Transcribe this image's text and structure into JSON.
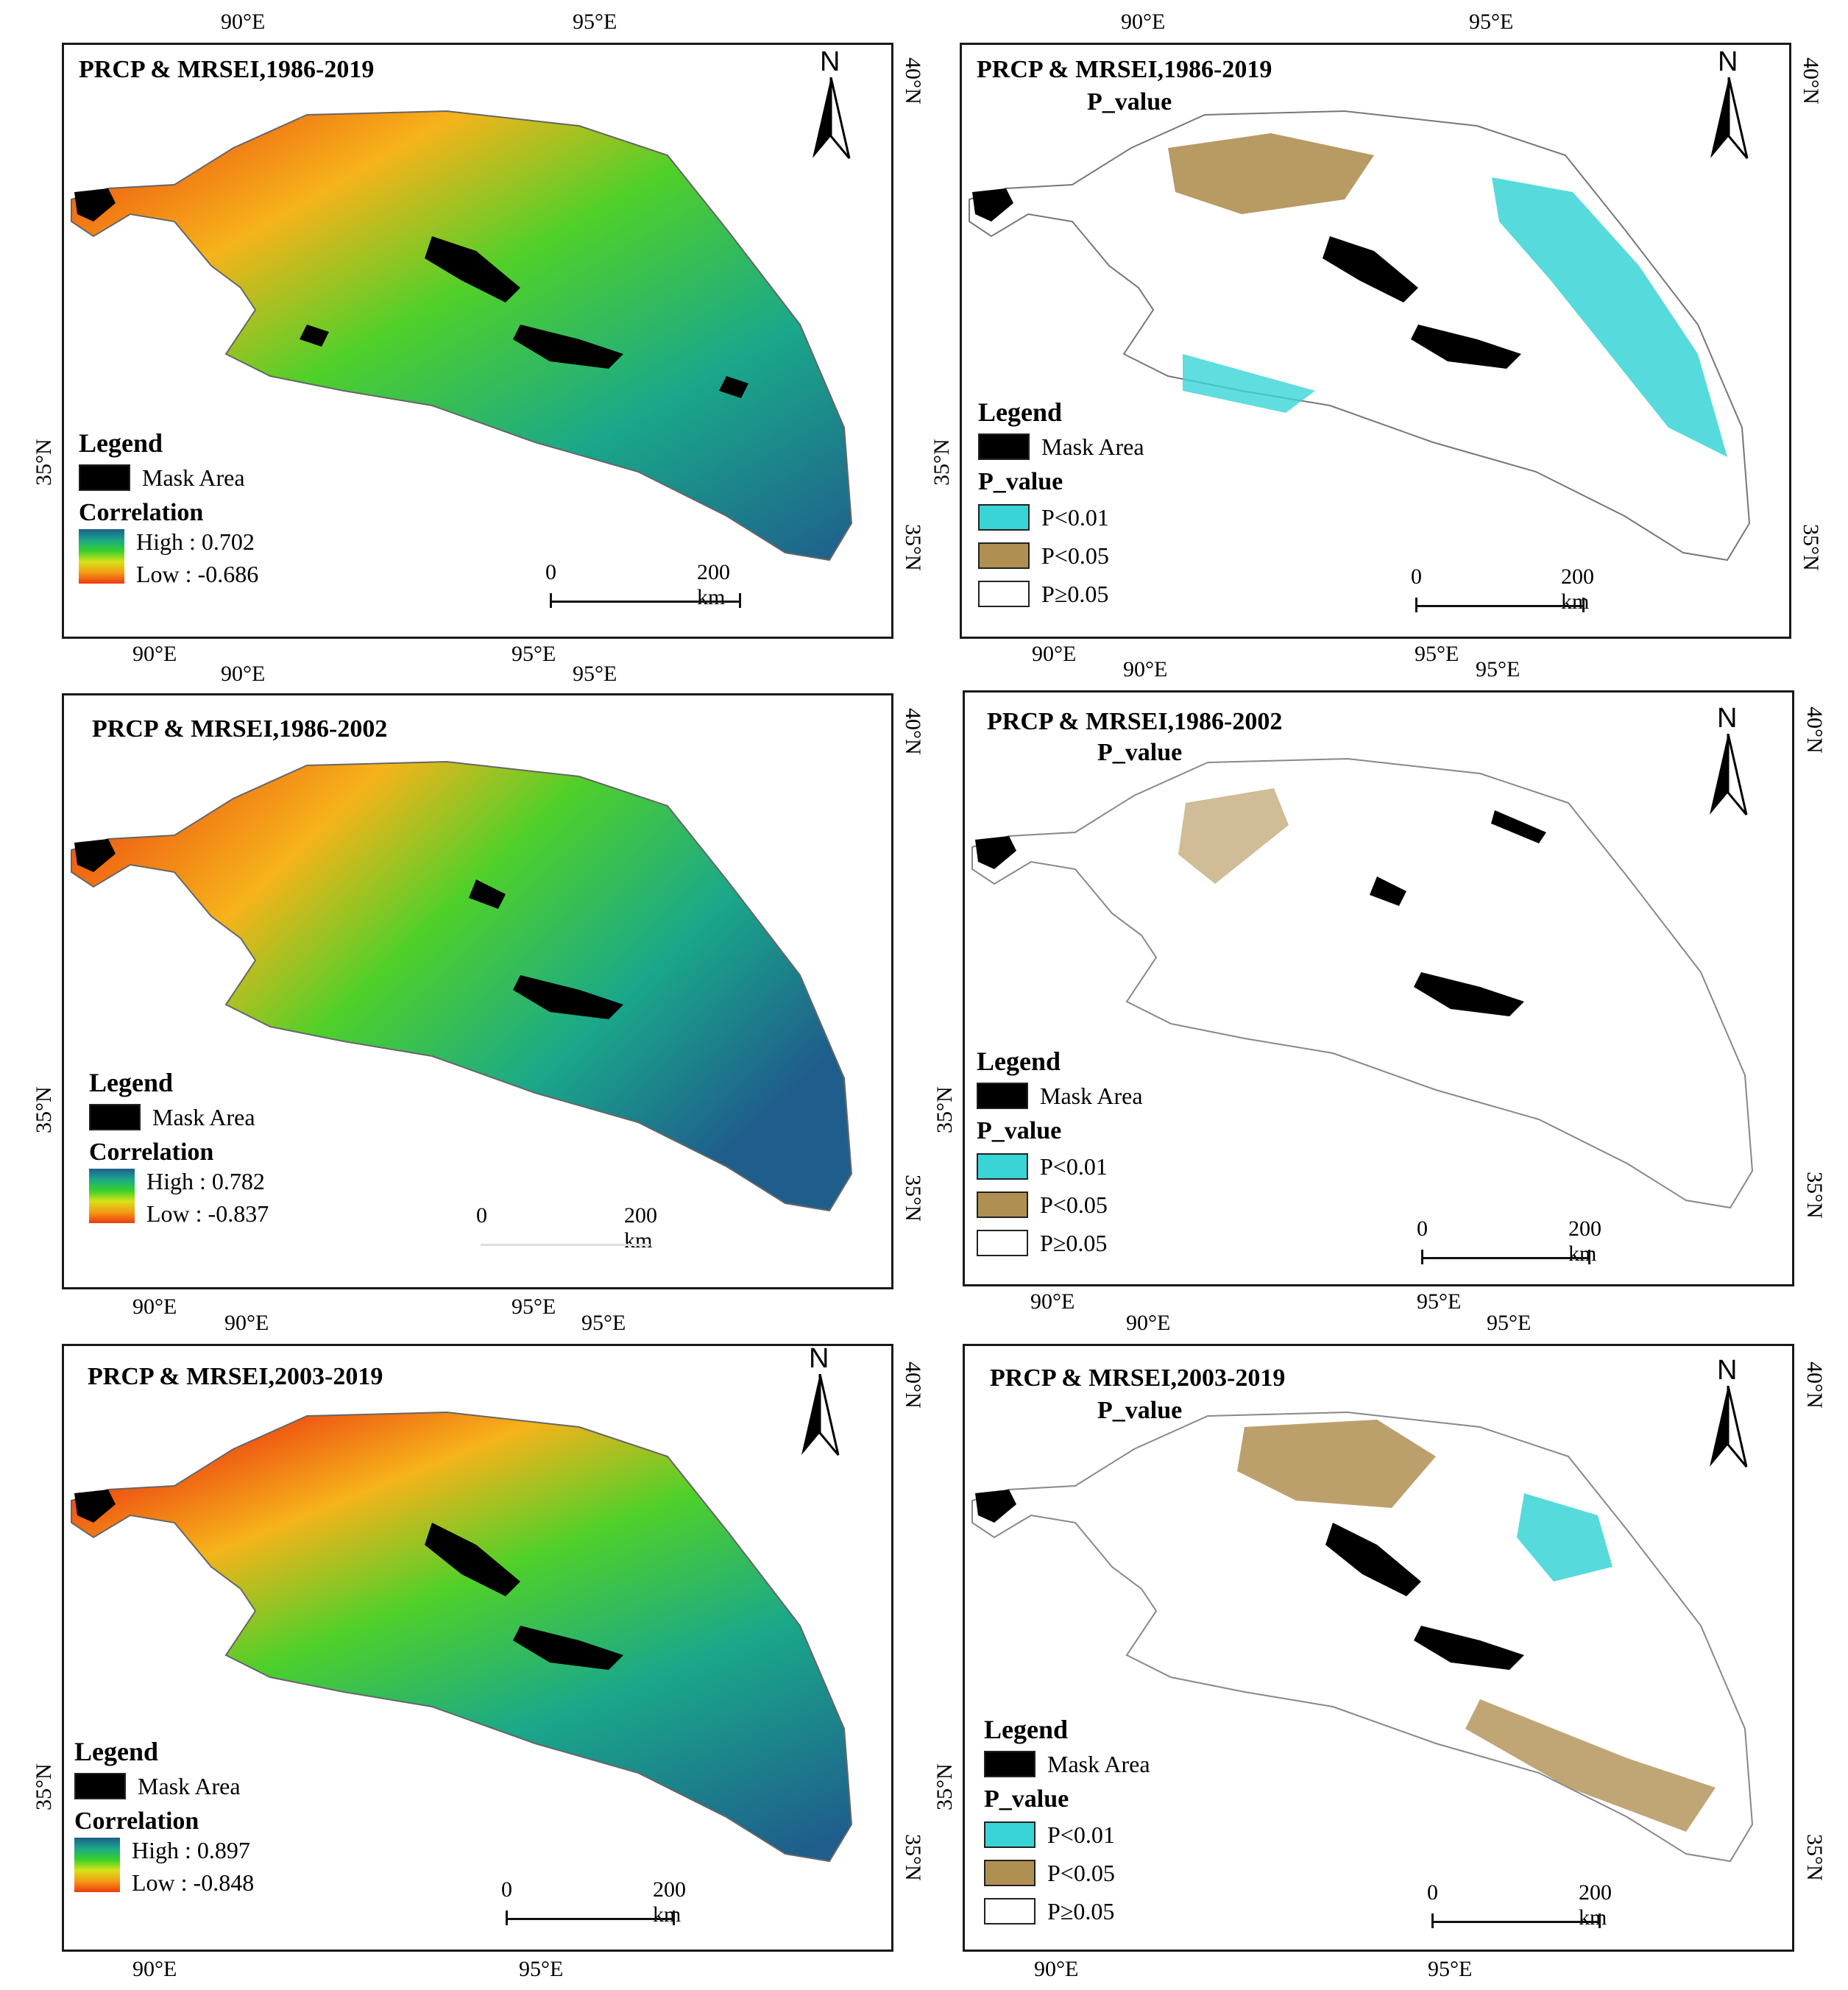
{
  "panels": [
    {
      "title": "PRCP & MRSEI,1986-2019",
      "subtitle": "",
      "kind": "correlation",
      "legend": {
        "heading": "Legend",
        "mask_label": "Mask Area",
        "section": "Correlation",
        "high": "High : 0.702",
        "low": "Low : -0.686"
      },
      "scale": {
        "start": "0",
        "end": "200 km"
      },
      "north": "N",
      "ticks": {
        "top_left": "90°E",
        "top_right": "95°E",
        "bottom_left": "90°E",
        "bottom_right": "95°E",
        "right_top": "40°N",
        "right_bottom": "35°N",
        "left": "35°N"
      }
    },
    {
      "title": "PRCP & MRSEI,1986-2019",
      "subtitle": "P_value",
      "kind": "pvalue",
      "legend": {
        "heading": "Legend",
        "mask_label": "Mask Area",
        "section": "P_value",
        "items": [
          "P<0.01",
          "P<0.05",
          "P≥0.05"
        ]
      },
      "scale": {
        "start": "0",
        "end": "200 km"
      },
      "north": "N",
      "ticks": {
        "top_left": "90°E",
        "top_right": "95°E",
        "bottom_left": "90°E",
        "bottom_right": "95°E",
        "right_top": "40°N",
        "right_bottom": "35°N",
        "left": "35°N"
      }
    },
    {
      "title": "PRCP & MRSEI,1986-2002",
      "subtitle": "",
      "kind": "correlation",
      "legend": {
        "heading": "Legend",
        "mask_label": "Mask Area",
        "section": "Correlation",
        "high": "High : 0.782",
        "low": "Low : -0.837"
      },
      "scale": {
        "start": "0",
        "end": "200 km"
      },
      "north": "",
      "ticks": {
        "top_left": "90°E",
        "top_right": "95°E",
        "bottom_left": "90°E",
        "bottom_right": "95°E",
        "right_top": "40°N",
        "right_bottom": "35°N",
        "left": "35°N"
      }
    },
    {
      "title": "PRCP & MRSEI,1986-2002",
      "subtitle": "P_value",
      "kind": "pvalue",
      "legend": {
        "heading": "Legend",
        "mask_label": "Mask Area",
        "section": "P_value",
        "items": [
          "P<0.01",
          "P<0.05",
          "P≥0.05"
        ]
      },
      "scale": {
        "start": "0",
        "end": "200 km"
      },
      "north": "N",
      "ticks": {
        "top_left": "90°E",
        "top_right": "95°E",
        "bottom_left": "90°E",
        "bottom_right": "95°E",
        "right_top": "40°N",
        "right_bottom": "35°N",
        "left": "35°N"
      }
    },
    {
      "title": "PRCP & MRSEI,2003-2019",
      "subtitle": "",
      "kind": "correlation",
      "legend": {
        "heading": "Legend",
        "mask_label": "Mask Area",
        "section": "Correlation",
        "high": "High : 0.897",
        "low": "Low : -0.848"
      },
      "scale": {
        "start": "0",
        "end": "200 km"
      },
      "north": "N",
      "ticks": {
        "top_left": "90°E",
        "top_right": "95°E",
        "bottom_left": "90°E",
        "bottom_right": "95°E",
        "right_top": "40°N",
        "right_bottom": "35°N",
        "left": "35°N"
      }
    },
    {
      "title": "PRCP & MRSEI,2003-2019",
      "subtitle": "P_value",
      "kind": "pvalue",
      "legend": {
        "heading": "Legend",
        "mask_label": "Mask Area",
        "section": "P_value",
        "items": [
          "P<0.01",
          "P<0.05",
          "P≥0.05"
        ]
      },
      "scale": {
        "start": "0",
        "end": "200 km"
      },
      "north": "N",
      "ticks": {
        "top_left": "90°E",
        "top_right": "95°E",
        "bottom_left": "90°E",
        "bottom_right": "95°E",
        "right_top": "40°N",
        "right_bottom": "35°N",
        "left": "35°N"
      }
    }
  ],
  "colors": {
    "mask": "#000000",
    "p001": "#38d4d6",
    "p005": "#b08f52",
    "pge005": "#ffffff",
    "corr_high": "#1f5e8c",
    "corr_mid": "#39d02a",
    "corr_low": "#ec3a10"
  }
}
